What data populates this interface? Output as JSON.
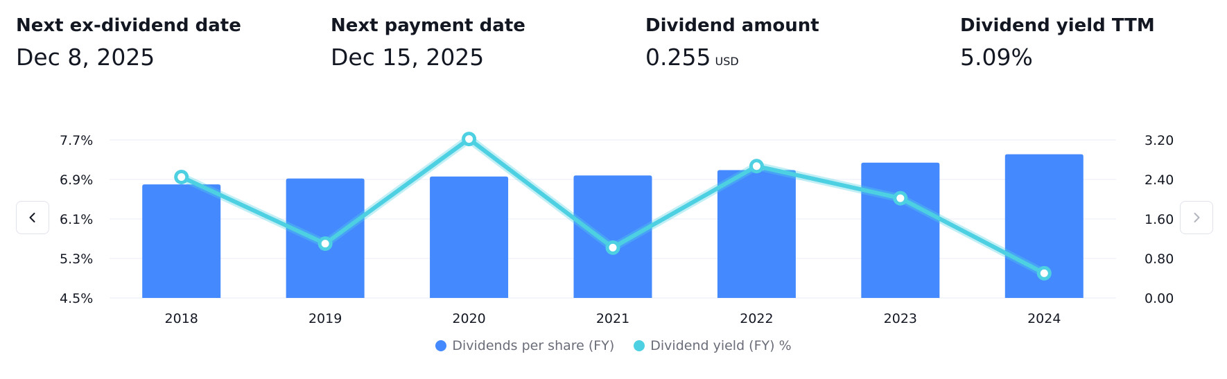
{
  "stats": [
    {
      "label": "Next ex-dividend date",
      "value": "Dec 8, 2025",
      "unit": ""
    },
    {
      "label": "Next payment date",
      "value": "Dec 15, 2025",
      "unit": ""
    },
    {
      "label": "Dividend amount",
      "value": "0.255",
      "unit": "USD"
    },
    {
      "label": "Dividend yield TTM",
      "value": "5.09%",
      "unit": ""
    }
  ],
  "colors": {
    "bar": "#4589ff",
    "line": "#4dd0e1",
    "grid": "#f0f3fa",
    "text": "#131722",
    "muted": "#6a6d78"
  },
  "nav": {
    "prev_icon": "chevron-left-icon",
    "next_icon": "chevron-right-icon"
  },
  "chart_data": {
    "type": "bar",
    "categories": [
      "2018",
      "2019",
      "2020",
      "2021",
      "2022",
      "2023",
      "2024"
    ],
    "series": [
      {
        "name": "Dividends per share (FY)",
        "type": "bar",
        "axis": "right",
        "values": [
          2.3,
          2.42,
          2.46,
          2.48,
          2.59,
          2.74,
          2.91
        ]
      },
      {
        "name": "Dividend yield (FY) %",
        "type": "line",
        "axis": "left",
        "values": [
          6.95,
          5.6,
          7.72,
          5.52,
          7.17,
          6.52,
          5.0
        ]
      }
    ],
    "left_axis": {
      "ticks": [
        "7.7%",
        "6.9%",
        "6.1%",
        "5.3%",
        "4.5%"
      ],
      "min": 4.5,
      "max": 7.7
    },
    "right_axis": {
      "ticks": [
        "3.20",
        "2.40",
        "1.60",
        "0.80",
        "0.00"
      ],
      "min": 0,
      "max": 3.2
    },
    "legend": {
      "position": "bottom"
    },
    "grid": true
  }
}
